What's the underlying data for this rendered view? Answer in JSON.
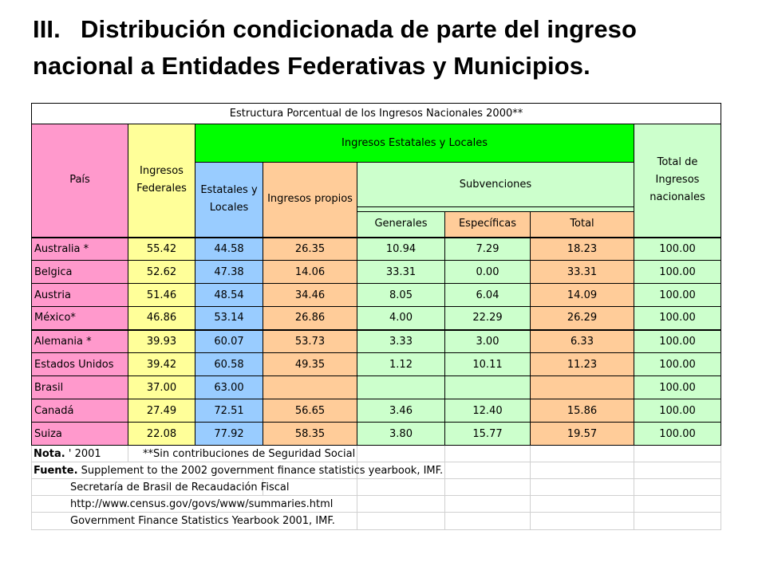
{
  "slide": {
    "title_number": "III.",
    "title_line1": "Distribución condicionada de parte del ingreso",
    "title_line2": "nacional a Entidades Federativas y Municipios."
  },
  "table": {
    "title": "Estructura Porcentual de los Ingresos Nacionales 2000**",
    "headers": {
      "pais": "País",
      "federales_l1": "Ingresos",
      "federales_l2": "Federales",
      "estatales_group": "Ingresos Estatales y Locales",
      "estatales_l1": "Estatales y",
      "estatales_l2": "Locales",
      "propios": "Ingresos propios",
      "subvenciones": "Subvenciones",
      "generales": "Generales",
      "especificas": "Específicas",
      "total": "Total",
      "total_nac_l1": "Total de",
      "total_nac_l2": "Ingresos",
      "total_nac_l3": "nacionales"
    },
    "rows": [
      {
        "country": "Australia  *",
        "federales": "55.42",
        "estatales": "44.58",
        "propios": "26.35",
        "generales": "10.94",
        "especificas": "7.29",
        "total": "18.23",
        "total_nac": "100.00"
      },
      {
        "country": "Belgica",
        "federales": "52.62",
        "estatales": "47.38",
        "propios": "14.06",
        "generales": "33.31",
        "especificas": "0.00",
        "total": "33.31",
        "total_nac": "100.00"
      },
      {
        "country": "Austria",
        "federales": "51.46",
        "estatales": "48.54",
        "propios": "34.46",
        "generales": "8.05",
        "especificas": "6.04",
        "total": "14.09",
        "total_nac": "100.00"
      },
      {
        "country": "México*",
        "federales": "46.86",
        "estatales": "53.14",
        "propios": "26.86",
        "generales": "4.00",
        "especificas": "22.29",
        "total": "26.29",
        "total_nac": "100.00"
      },
      {
        "country": "Alemania *",
        "federales": "39.93",
        "estatales": "60.07",
        "propios": "53.73",
        "generales": "3.33",
        "especificas": "3.00",
        "total": "6.33",
        "total_nac": "100.00"
      },
      {
        "country": "Estados Unidos",
        "federales": "39.42",
        "estatales": "60.58",
        "propios": "49.35",
        "generales": "1.12",
        "especificas": "10.11",
        "total": "11.23",
        "total_nac": "100.00"
      },
      {
        "country": "Brasil",
        "federales": "37.00",
        "estatales": "63.00",
        "propios": "",
        "generales": "",
        "especificas": "",
        "total": "",
        "total_nac": "100.00"
      },
      {
        "country": "Canadá",
        "federales": "27.49",
        "estatales": "72.51",
        "propios": "56.65",
        "generales": "3.46",
        "especificas": "12.40",
        "total": "15.86",
        "total_nac": "100.00"
      },
      {
        "country": "Suiza",
        "federales": "22.08",
        "estatales": "77.92",
        "propios": "58.35",
        "generales": "3.80",
        "especificas": "15.77",
        "total": "19.57",
        "total_nac": "100.00"
      }
    ],
    "notes": {
      "nota_label": "Nota.",
      "nota_text": " ' 2001",
      "nota_extra": "**Sin contribuciones de Seguridad Social",
      "fuente_label": "Fuente.",
      "fuente_text": " Supplement to the 2002 government finance statistics yearbook, IMF.",
      "fuente2": "Secretaría de Brasil de Recaudación Fiscal",
      "fuente3": "http://www.census.gov/govs/www/summaries.html",
      "fuente4": "Government Finance Statistics Yearbook 2001, IMF."
    }
  },
  "colors": {
    "pais": "#ff99cc",
    "federales": "#ffff99",
    "estatales": "#99ccff",
    "propios": "#ffcc99",
    "subvenciones": "#ccffcc",
    "group_header": "#00ff00"
  }
}
